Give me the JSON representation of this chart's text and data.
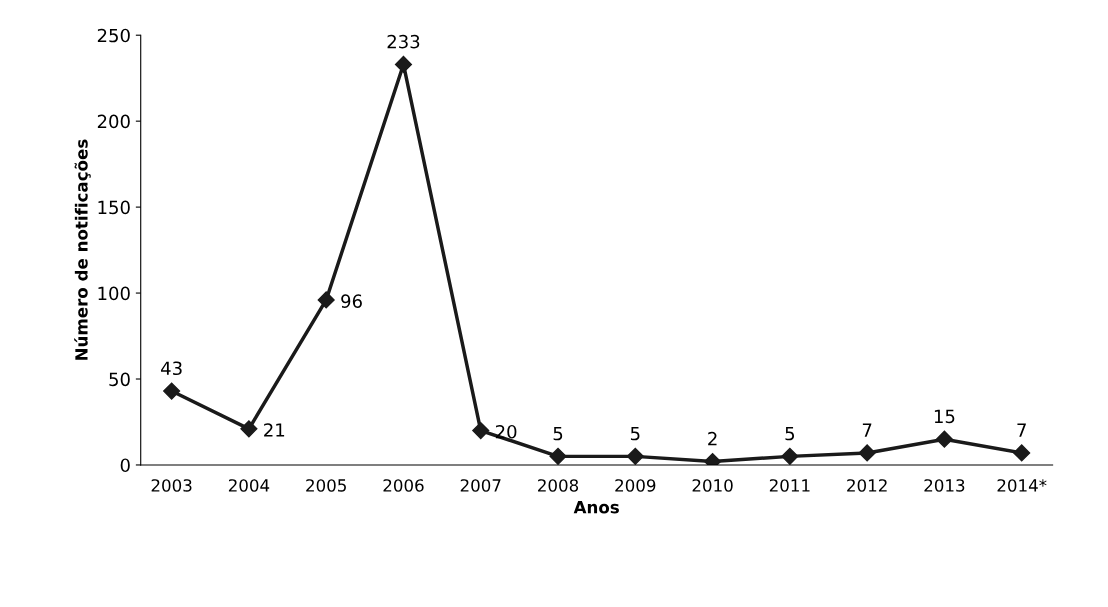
{
  "chart_data": {
    "type": "line",
    "xlabel": "Anos",
    "ylabel": "Número de notificações",
    "categories": [
      "2003",
      "2004",
      "2005",
      "2006",
      "2007",
      "2008",
      "2009",
      "2010",
      "2011",
      "2012",
      "2013",
      "2014*"
    ],
    "series": [
      {
        "color": "#1a1a1a",
        "values": [
          43,
          21,
          96,
          233,
          20,
          5,
          5,
          2,
          5,
          7,
          15,
          7
        ]
      }
    ],
    "ylim": [
      0,
      250
    ],
    "yticks": [
      0,
      50,
      100,
      150,
      200,
      250
    ],
    "grid": false,
    "legend": false,
    "marker": "diamond",
    "line_style": "solid",
    "data_labels": true
  }
}
